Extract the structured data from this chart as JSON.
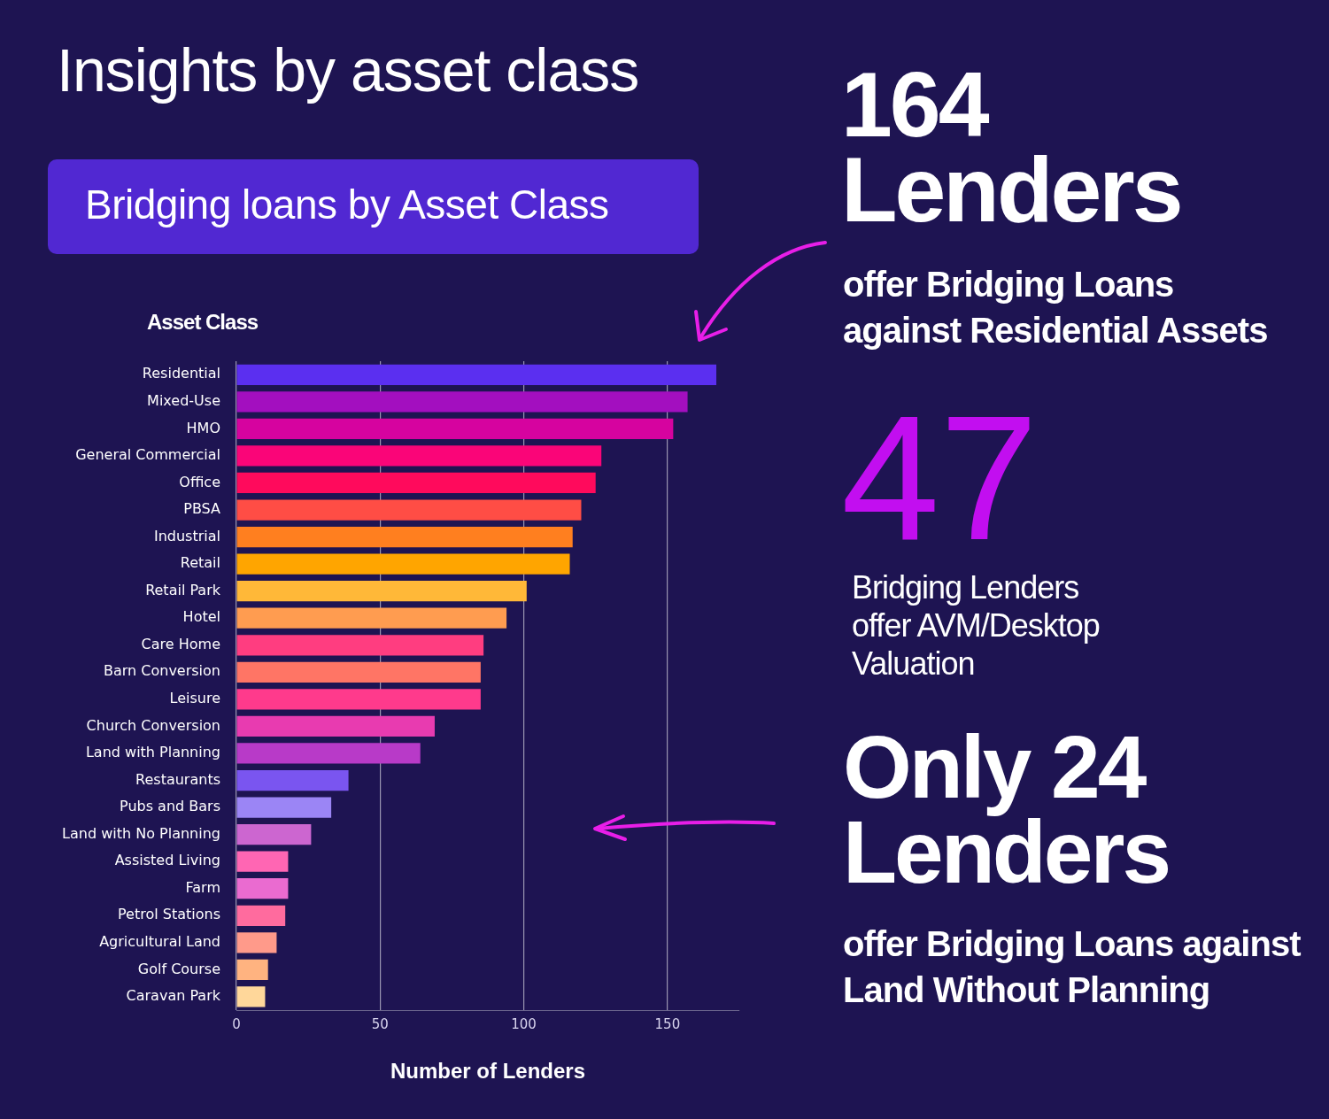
{
  "chart_data": {
    "type": "bar",
    "orientation": "horizontal",
    "title": "Insights by asset class",
    "subtitle": "Bridging loans by Asset Class",
    "ylabel": "Asset Class",
    "xlabel": "Number of Lenders",
    "categories": [
      "Residential",
      "Mixed-Use",
      "HMO",
      "General Commercial",
      "Office",
      "PBSA",
      "Industrial",
      "Retail",
      "Retail Park",
      "Hotel",
      "Care Home",
      "Barn Conversion",
      "Leisure",
      "Church Conversion",
      "Land with Planning",
      "Restaurants",
      "Pubs and Bars",
      "Land with No Planning",
      "Assisted Living",
      "Farm",
      "Petrol Stations",
      "Agricultural Land",
      "Golf Course",
      "Caravan Park"
    ],
    "values": [
      167,
      157,
      152,
      127,
      125,
      120,
      117,
      116,
      101,
      94,
      86,
      85,
      85,
      69,
      64,
      39,
      33,
      26,
      18,
      18,
      17,
      14,
      11,
      10
    ],
    "colors": [
      "#5b2ff0",
      "#a30fbf",
      "#d6039f",
      "#fa0578",
      "#ff0a5c",
      "#ff4d45",
      "#ff7f1f",
      "#ffa500",
      "#ffb838",
      "#ff9c50",
      "#ff3d80",
      "#ff7565",
      "#ff3a8c",
      "#e83bb0",
      "#b83ac8",
      "#7a55f0",
      "#9b85f5",
      "#cc66d0",
      "#ff66b3",
      "#ea6bd0",
      "#ff6b9e",
      "#ff9a8a",
      "#ffb380",
      "#ffd79a"
    ],
    "xlim": [
      0,
      175
    ],
    "xticks": [
      0,
      50,
      100,
      150
    ],
    "grid": "x",
    "legend": false,
    "annotations": [
      "164 Lenders",
      "offer Bridging Loans against Residential Assets",
      "47",
      "Bridging Lenders offer AVM/Desktop Valuation",
      "Only 24 Lenders",
      "offer Bridging Loans against Land Without Planning"
    ]
  }
}
